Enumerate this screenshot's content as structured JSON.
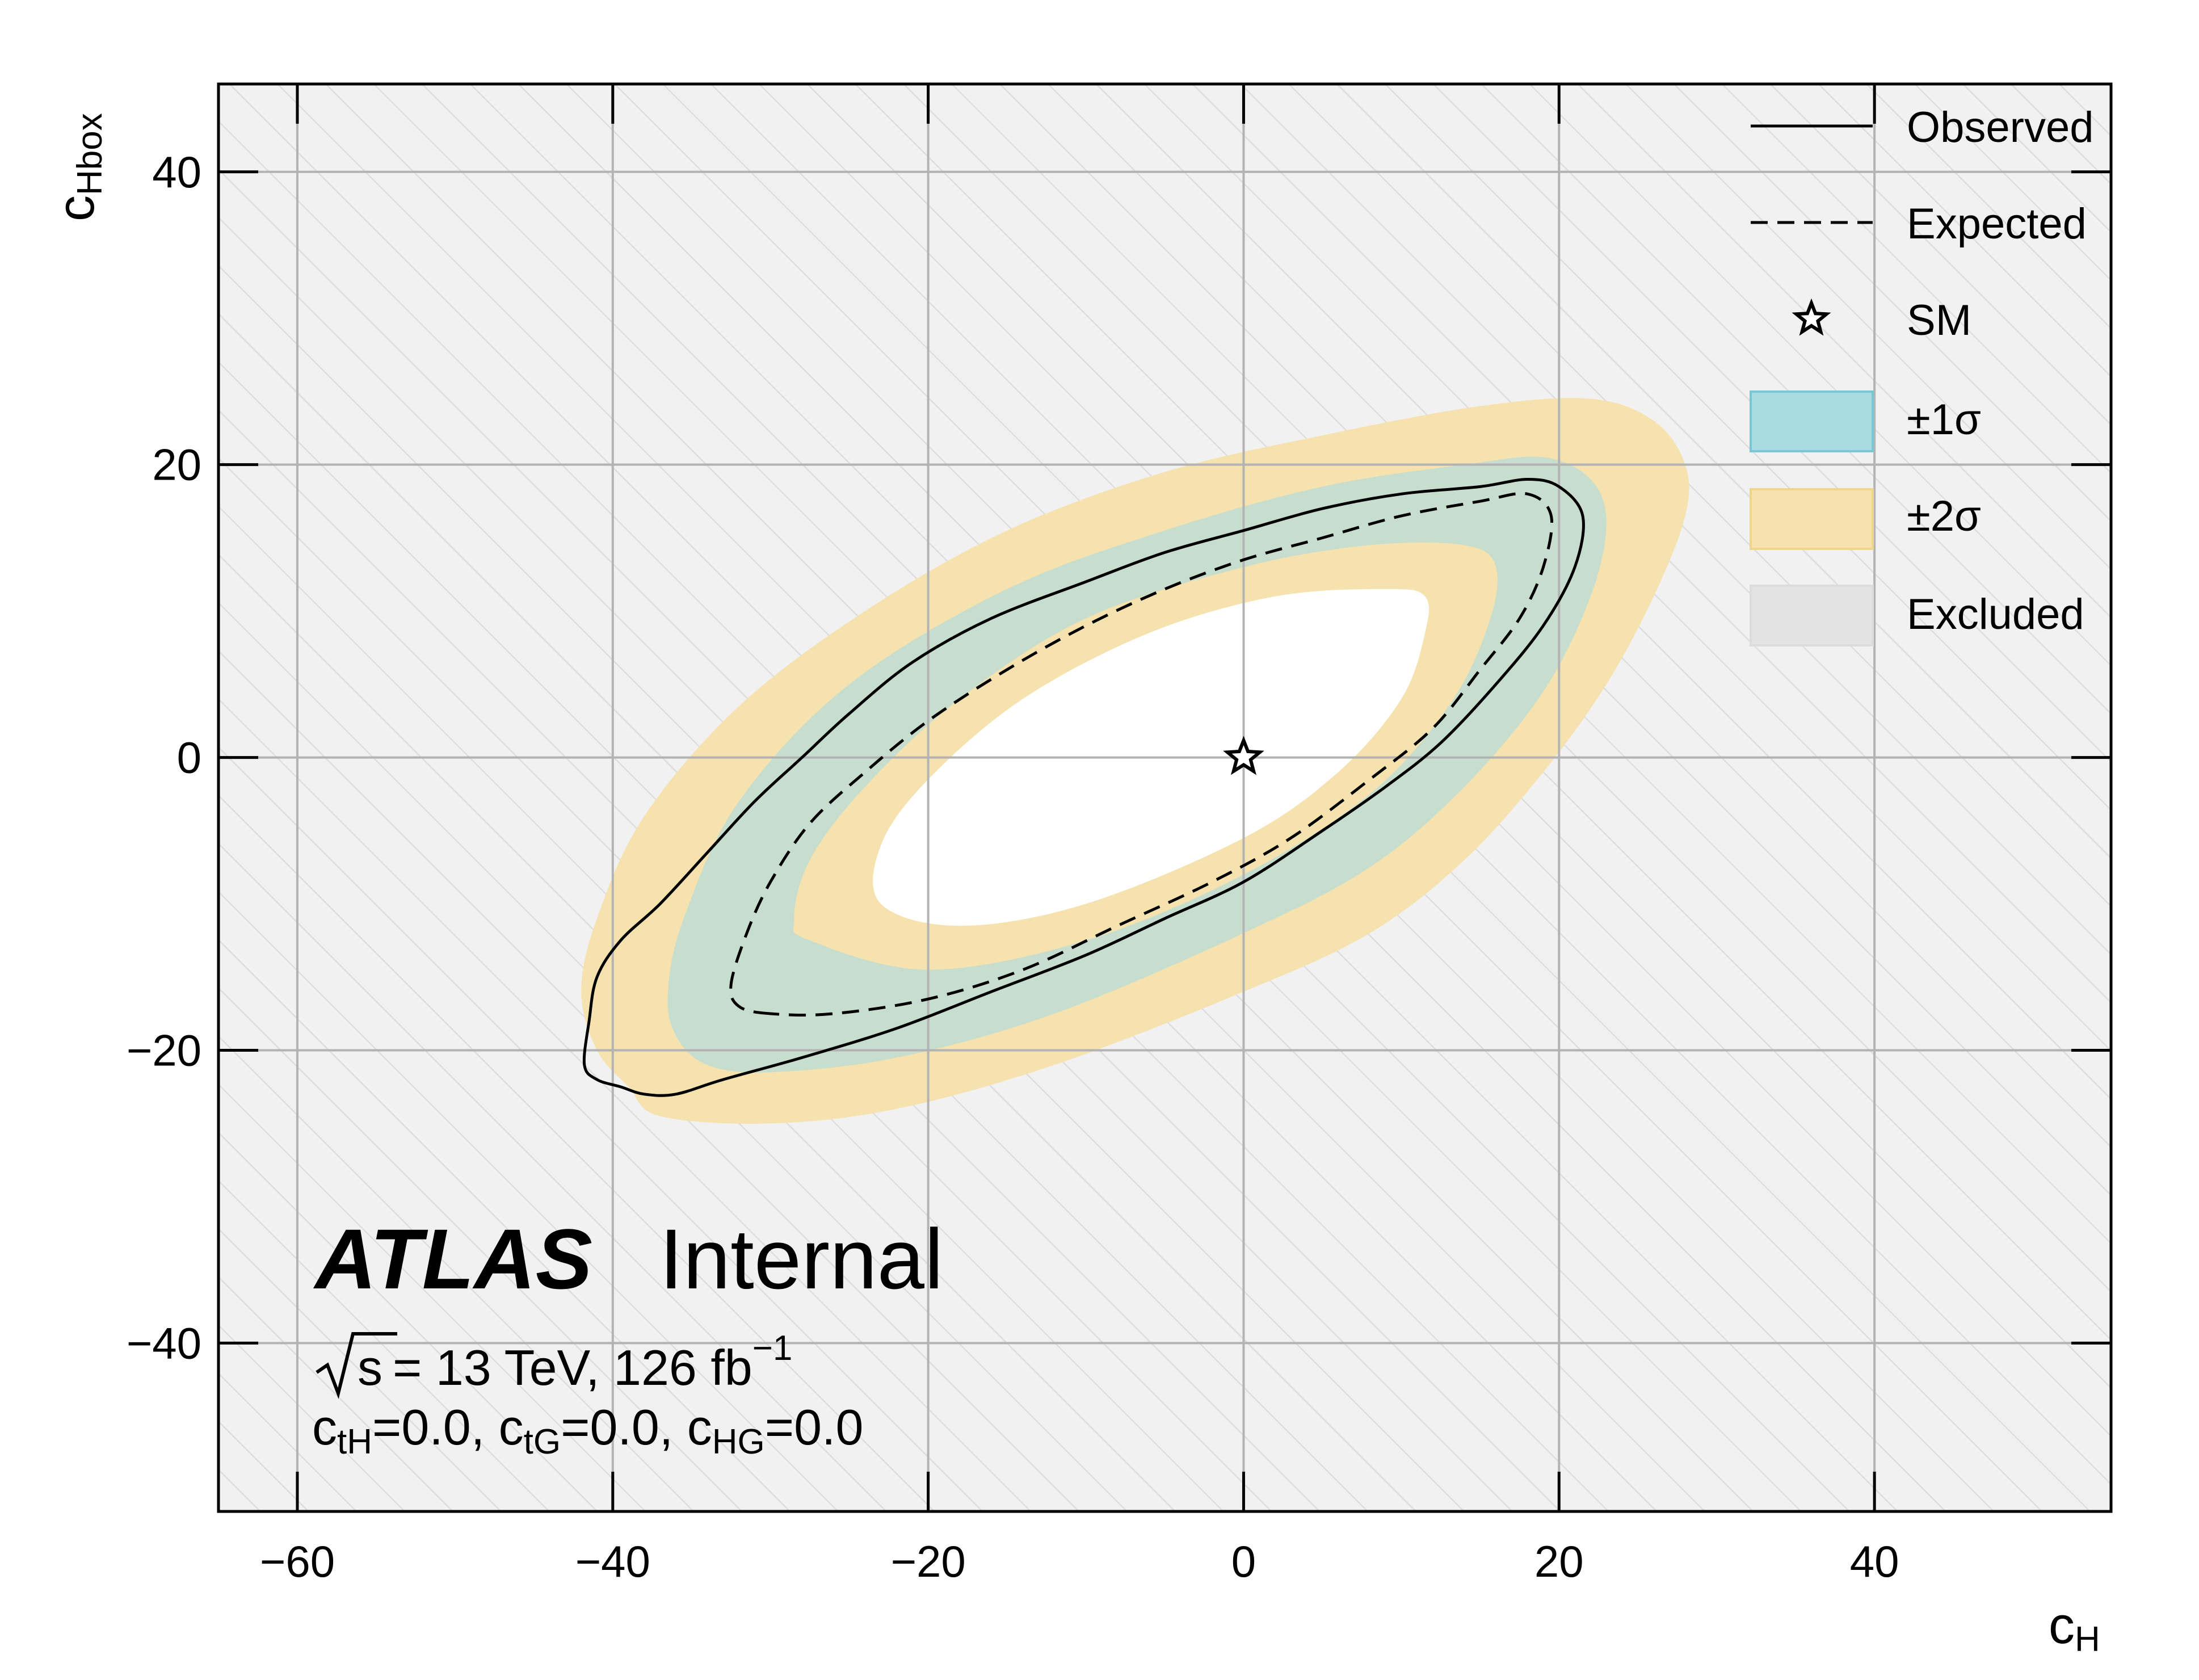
{
  "chart_data": {
    "type": "contour",
    "experiment": "ATLAS",
    "status": "Internal",
    "energy_label": "= 13 TeV, 126 fb",
    "energy_sqrt": "s",
    "lumi_sup": "−1",
    "conditions": [
      {
        "symbol": "c",
        "sub": "tH",
        "value": "=0.0, "
      },
      {
        "symbol": "c",
        "sub": "tG",
        "value": "=0.0, "
      },
      {
        "symbol": "c",
        "sub": "HG",
        "value": "=0.0"
      }
    ],
    "xlabel": {
      "symbol": "c",
      "sub": "H"
    },
    "ylabel": {
      "symbol": "c",
      "sub": "Hbox"
    },
    "xlim": [
      -65,
      55
    ],
    "ylim": [
      -51.5,
      46
    ],
    "xticks": [
      -60,
      -40,
      -20,
      0,
      20,
      40
    ],
    "yticks": [
      -40,
      -20,
      0,
      20,
      40
    ],
    "xtick_labels": [
      "−60",
      "−40",
      "−20",
      "0",
      "20",
      "40"
    ],
    "ytick_labels": [
      "−40",
      "−20",
      "0",
      "20",
      "40"
    ],
    "grid": true,
    "legend_position": "top-right",
    "legend": [
      {
        "key": "observed",
        "label": "Observed"
      },
      {
        "key": "expected",
        "label": "Expected"
      },
      {
        "key": "sm",
        "label": "SM"
      },
      {
        "key": "band1",
        "label": "±1σ"
      },
      {
        "key": "band2",
        "label": "±2σ"
      },
      {
        "key": "excluded",
        "label": "Excluded"
      }
    ],
    "sm_point": {
      "x": 0,
      "y": 0
    },
    "band2_outer": [
      [
        -41,
        -20
      ],
      [
        -39,
        -22.5
      ],
      [
        -37,
        -24.5
      ],
      [
        -30,
        -25
      ],
      [
        -22,
        -24
      ],
      [
        -12,
        -21
      ],
      [
        0,
        -16
      ],
      [
        8,
        -12
      ],
      [
        14,
        -7
      ],
      [
        19,
        -1
      ],
      [
        23,
        5
      ],
      [
        26,
        11
      ],
      [
        28,
        16.5
      ],
      [
        28,
        20
      ],
      [
        26,
        23
      ],
      [
        22,
        24.5
      ],
      [
        15,
        24
      ],
      [
        5,
        22
      ],
      [
        -5,
        19.5
      ],
      [
        -15,
        15.5
      ],
      [
        -24,
        10
      ],
      [
        -32,
        3.5
      ],
      [
        -38,
        -4
      ],
      [
        -41,
        -11
      ],
      [
        -42,
        -16
      ]
    ],
    "band1_outer": [
      [
        -36,
        -19
      ],
      [
        -34,
        -21
      ],
      [
        -30,
        -21.5
      ],
      [
        -22,
        -20.5
      ],
      [
        -12,
        -17.5
      ],
      [
        0,
        -12
      ],
      [
        8,
        -7.5
      ],
      [
        14,
        -2
      ],
      [
        19,
        4.5
      ],
      [
        22,
        11
      ],
      [
        23,
        16
      ],
      [
        22,
        19
      ],
      [
        19,
        20.5
      ],
      [
        14,
        20
      ],
      [
        5,
        18.5
      ],
      [
        -5,
        15.5
      ],
      [
        -15,
        11.5
      ],
      [
        -25,
        5
      ],
      [
        -32,
        -3
      ],
      [
        -35.5,
        -11
      ],
      [
        -36.5,
        -16
      ]
    ],
    "band1_inner": [
      [
        -27.5,
        -12.5
      ],
      [
        -20,
        -14.5
      ],
      [
        -10,
        -12.5
      ],
      [
        0,
        -8
      ],
      [
        8,
        -2.5
      ],
      [
        13,
        3.5
      ],
      [
        15.5,
        9
      ],
      [
        16,
        13
      ],
      [
        14,
        14.5
      ],
      [
        8,
        14.5
      ],
      [
        0,
        13
      ],
      [
        -10,
        9.5
      ],
      [
        -18,
        4
      ],
      [
        -24,
        -2
      ],
      [
        -27.5,
        -7
      ],
      [
        -28.5,
        -11
      ]
    ],
    "band2_inner": [
      [
        -23,
        -10
      ],
      [
        -18,
        -11.5
      ],
      [
        -10,
        -10
      ],
      [
        0,
        -5.5
      ],
      [
        6,
        -1
      ],
      [
        10,
        4
      ],
      [
        11.5,
        8.5
      ],
      [
        11.5,
        11
      ],
      [
        9,
        11.5
      ],
      [
        2,
        11
      ],
      [
        -6,
        8.5
      ],
      [
        -14,
        4
      ],
      [
        -20,
        -1.5
      ],
      [
        -23,
        -6
      ]
    ],
    "observed": [
      [
        -38,
        -23
      ],
      [
        -39.5,
        -22.5
      ],
      [
        -41,
        -22
      ],
      [
        -41.8,
        -21
      ],
      [
        -41.5,
        -18
      ],
      [
        -41,
        -15
      ],
      [
        -39.5,
        -12.5
      ],
      [
        -37,
        -10
      ],
      [
        -34,
        -6.5
      ],
      [
        -31,
        -3
      ],
      [
        -28,
        0
      ],
      [
        -25,
        3
      ],
      [
        -21,
        6.5
      ],
      [
        -16,
        9.5
      ],
      [
        -10,
        12
      ],
      [
        -5,
        14
      ],
      [
        0,
        15.5
      ],
      [
        5,
        17
      ],
      [
        10,
        18
      ],
      [
        15,
        18.5
      ],
      [
        18,
        19
      ],
      [
        20,
        18.5
      ],
      [
        21.5,
        16.5
      ],
      [
        21,
        13
      ],
      [
        19,
        9
      ],
      [
        16,
        5
      ],
      [
        12.5,
        1
      ],
      [
        9,
        -2
      ],
      [
        5,
        -5
      ],
      [
        0,
        -8.5
      ],
      [
        -5,
        -11
      ],
      [
        -10,
        -13.5
      ],
      [
        -16,
        -16
      ],
      [
        -22,
        -18.5
      ],
      [
        -28,
        -20.5
      ],
      [
        -33,
        -22
      ],
      [
        -36,
        -23
      ]
    ],
    "expected": [
      [
        -30,
        -17.5
      ],
      [
        -32,
        -17
      ],
      [
        -32.5,
        -15.5
      ],
      [
        -31.5,
        -12
      ],
      [
        -30,
        -8.5
      ],
      [
        -27.5,
        -4.5
      ],
      [
        -24,
        -1
      ],
      [
        -20,
        2.5
      ],
      [
        -15,
        6
      ],
      [
        -10,
        9
      ],
      [
        -5,
        11.5
      ],
      [
        0,
        13.5
      ],
      [
        5,
        15
      ],
      [
        10,
        16.5
      ],
      [
        15,
        17.5
      ],
      [
        18,
        18
      ],
      [
        19.5,
        16.5
      ],
      [
        19,
        13
      ],
      [
        17.5,
        9.5
      ],
      [
        15,
        6
      ],
      [
        12,
        2
      ],
      [
        8,
        -1.5
      ],
      [
        3,
        -5.5
      ],
      [
        -2,
        -8.5
      ],
      [
        -8,
        -11.5
      ],
      [
        -14,
        -14.5
      ],
      [
        -20,
        -16.5
      ],
      [
        -26,
        -17.5
      ]
    ]
  },
  "colors": {
    "band1": "#a9dbe3",
    "band2": "#f6e2ae",
    "excluded": "#f1f1f1",
    "hatch": "#dedede",
    "grid": "#b3b3b3"
  }
}
